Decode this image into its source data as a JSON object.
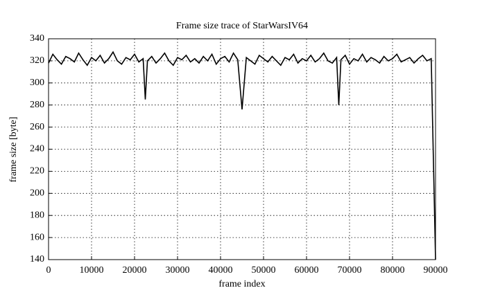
{
  "chart_data": {
    "type": "line",
    "title": "Frame size trace of StarWarsIV64",
    "xlabel": "frame index",
    "ylabel": "frame size [byte]",
    "x": [
      0,
      1000,
      2000,
      3000,
      4000,
      5000,
      6000,
      7000,
      8000,
      9000,
      10000,
      11000,
      12000,
      13000,
      14000,
      15000,
      16000,
      17000,
      18000,
      19000,
      20000,
      21000,
      22000,
      22500,
      23000,
      24000,
      25000,
      26000,
      27000,
      28000,
      29000,
      30000,
      31000,
      32000,
      33000,
      34000,
      35000,
      36000,
      37000,
      38000,
      39000,
      40000,
      41000,
      42000,
      43000,
      44000,
      45000,
      46000,
      47000,
      48000,
      49000,
      50000,
      51000,
      52000,
      53000,
      54000,
      55000,
      56000,
      57000,
      58000,
      59000,
      60000,
      61000,
      62000,
      63000,
      64000,
      65000,
      66000,
      67000,
      67500,
      68000,
      69000,
      70000,
      71000,
      72000,
      73000,
      74000,
      75000,
      76000,
      77000,
      78000,
      79000,
      80000,
      81000,
      82000,
      83000,
      84000,
      85000,
      86000,
      87000,
      88000,
      89000,
      90000
    ],
    "series": [
      {
        "name": "frame size",
        "color": "#000000",
        "values": [
          318,
          326,
          321,
          317,
          324,
          322,
          319,
          327,
          321,
          316,
          323,
          320,
          325,
          318,
          322,
          328,
          320,
          317,
          323,
          321,
          326,
          319,
          322,
          285,
          320,
          324,
          318,
          322,
          327,
          320,
          316,
          323,
          321,
          325,
          319,
          322,
          318,
          324,
          320,
          326,
          317,
          322,
          324,
          319,
          327,
          321,
          276,
          323,
          320,
          317,
          325,
          322,
          319,
          324,
          320,
          316,
          323,
          321,
          326,
          318,
          322,
          320,
          325,
          319,
          322,
          327,
          320,
          318,
          323,
          280,
          321,
          325,
          317,
          322,
          320,
          326,
          319,
          323,
          321,
          318,
          324,
          320,
          322,
          326,
          319,
          321,
          323,
          318,
          322,
          325,
          320,
          322,
          140
        ]
      }
    ],
    "xlim": [
      0,
      90000
    ],
    "ylim": [
      140,
      340
    ],
    "xticks": [
      0,
      10000,
      20000,
      30000,
      40000,
      50000,
      60000,
      70000,
      80000,
      90000
    ],
    "yticks": [
      140,
      160,
      180,
      200,
      220,
      240,
      260,
      280,
      300,
      320,
      340
    ],
    "grid": true
  }
}
